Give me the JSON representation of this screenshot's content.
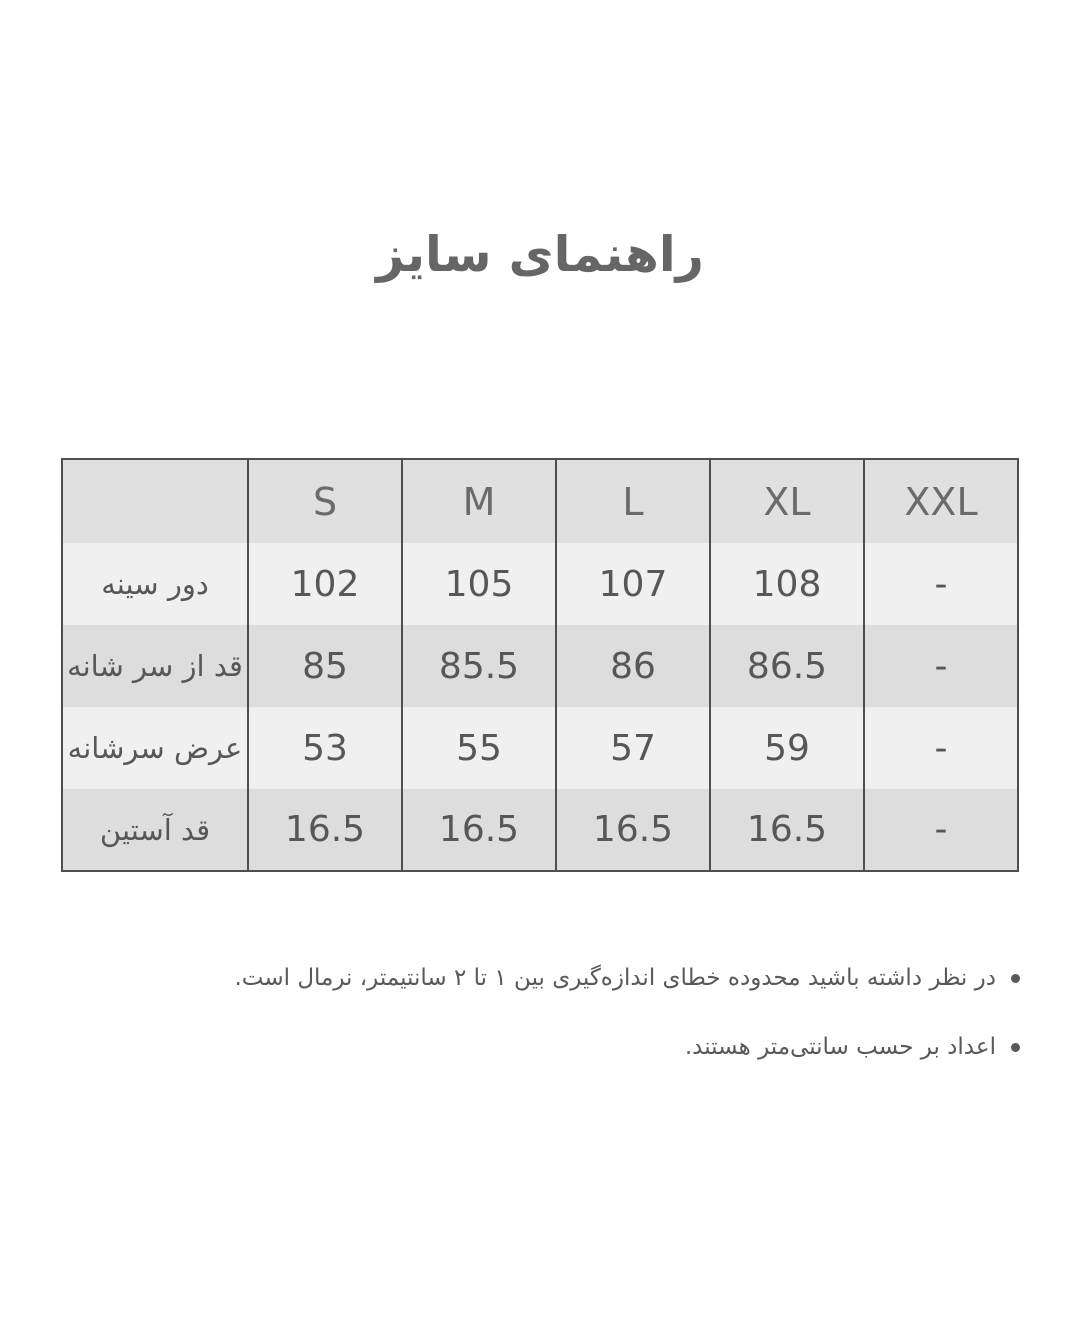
{
  "page": {
    "title": "راهنمای سایز",
    "background": "#ffffff"
  },
  "table": {
    "columns": [
      "",
      "S",
      "M",
      "L",
      "XL",
      "XXL"
    ],
    "rows": [
      {
        "label": "دور سینه",
        "values": [
          "102",
          "105",
          "107",
          "108",
          "-"
        ]
      },
      {
        "label": "قد از سر شانه",
        "values": [
          "85",
          "85.5",
          "86",
          "86.5",
          "-"
        ]
      },
      {
        "label": "عرض سرشانه",
        "values": [
          "53",
          "55",
          "57",
          "59",
          "-"
        ]
      },
      {
        "label": "قد آستین",
        "values": [
          "16.5",
          "16.5",
          "16.5",
          "16.5",
          "-"
        ]
      }
    ],
    "colors": {
      "header_bg": "#e0e0e0",
      "row_light_bg": "#f0f0f0",
      "row_dark_bg": "#dddddd",
      "border": "#4e4e4e",
      "text": "#575757"
    }
  },
  "notes": {
    "items": [
      "در نظر داشته باشید محدوده خطای اندازه‌گیری بین ۱ تا ۲ سانتیمتر، نرمال است.",
      "اعداد بر حسب سانتی‌متر هستند."
    ]
  }
}
